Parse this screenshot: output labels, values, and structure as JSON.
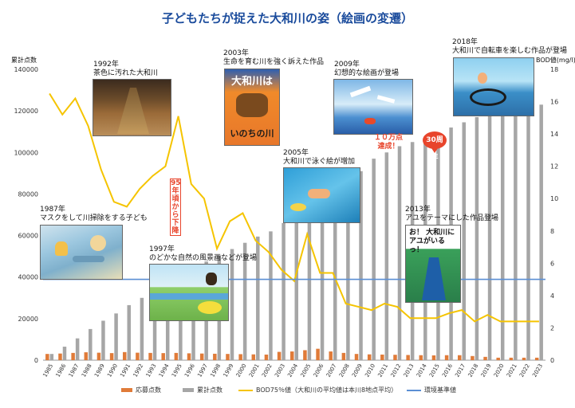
{
  "page": {
    "title": "子どもたちが捉えた大和川の姿（絵画の変遷）"
  },
  "colors": {
    "award_bar": "#e07b39",
    "cumulative_bar": "#a6a6a6",
    "bod_line": "#f5c400",
    "standard_line": "#5b8fd4",
    "title": "#1a4b9c",
    "highlight": "#e8452c"
  },
  "chart_data": {
    "type": "bar",
    "x": [
      "1985",
      "1986",
      "1987",
      "1988",
      "1989",
      "1990",
      "1991",
      "1992",
      "1993",
      "1994",
      "1995",
      "1996",
      "1997",
      "1998",
      "1999",
      "2000",
      "2001",
      "2002",
      "2003",
      "2004",
      "2005",
      "2006",
      "2007",
      "2008",
      "2009",
      "2010",
      "2011",
      "2012",
      "2013",
      "2014",
      "2015",
      "2016",
      "2017",
      "2018",
      "2019",
      "2020",
      "2021",
      "2022",
      "2023"
    ],
    "left_axis": {
      "label": "累計点数",
      "ylim": [
        0,
        140000
      ],
      "ticks": [
        "0",
        "20000",
        "40000",
        "60000",
        "80000",
        "100000",
        "120000",
        "140000"
      ]
    },
    "right_axis": {
      "label": "BOD値(mg/l)",
      "ylim": [
        0,
        18
      ],
      "ticks": [
        "0",
        "2",
        "4",
        "6",
        "8",
        "10",
        "12",
        "14",
        "16",
        "18"
      ]
    },
    "series": [
      {
        "name": "応募点数",
        "type": "bar",
        "axis": "left",
        "values": [
          3000,
          3200,
          3500,
          3800,
          3600,
          3400,
          3900,
          3600,
          3500,
          3400,
          3500,
          3300,
          3200,
          3100,
          3000,
          2900,
          2800,
          2700,
          4000,
          4200,
          4800,
          5500,
          4200,
          3500,
          3000,
          2800,
          2700,
          2600,
          2500,
          2400,
          2300,
          2400,
          2400,
          2000,
          1600,
          1200,
          1200,
          1200,
          1200
        ]
      },
      {
        "name": "累計点数",
        "type": "bar",
        "axis": "left",
        "values": [
          3000,
          6500,
          10500,
          15000,
          19000,
          22500,
          26500,
          30000,
          34000,
          37500,
          41000,
          44500,
          47500,
          50500,
          53500,
          56500,
          59500,
          62000,
          66000,
          70000,
          74500,
          80000,
          84500,
          88000,
          91000,
          97000,
          100000,
          103000,
          105000,
          107000,
          109500,
          112000,
          114500,
          117000,
          118500,
          119500,
          121000,
          122000,
          123000
        ]
      },
      {
        "name": "BOD75％値（大和川の平均値は本川8地点平均）",
        "type": "line",
        "axis": "right",
        "values": [
          16.5,
          15.2,
          16.2,
          14.5,
          11.8,
          9.8,
          9.5,
          10.6,
          11.4,
          12,
          15.1,
          10.9,
          10,
          6.9,
          8.6,
          9.1,
          7.4,
          6.7,
          5.6,
          4.9,
          7.8,
          5.4,
          5.4,
          3.5,
          3.3,
          3.1,
          3.5,
          3.3,
          2.6,
          2.6,
          2.6,
          2.9,
          3.1,
          2.4,
          2.8,
          2.4,
          2.4,
          2.4,
          2.4
        ]
      },
      {
        "name": "環境基準値",
        "type": "line",
        "axis": "right",
        "values": [
          5,
          5,
          5,
          5,
          5,
          5,
          5,
          5,
          5,
          5,
          5,
          5,
          5,
          5,
          5,
          5,
          5,
          5,
          5,
          5,
          5,
          5,
          5,
          5,
          5,
          5,
          5,
          5,
          5,
          5,
          5,
          5,
          5,
          5,
          5,
          5,
          5,
          5,
          5
        ]
      }
    ],
    "legend_position": "bottom",
    "grid": false
  },
  "annotations": {
    "a1987": {
      "year": "1987年",
      "text": "マスクをして川掃除をする子ども"
    },
    "a1992": {
      "year": "1992年",
      "text": "茶色に汚れた大和川"
    },
    "a1997": {
      "year": "1997年",
      "text": "のどかな自然の風景画などが登場"
    },
    "a2003": {
      "year": "2003年",
      "text": "生命を育む川を強く訴えた作品"
    },
    "a2005": {
      "year": "2005年",
      "text": "大和川で泳ぐ絵が増加"
    },
    "a2009": {
      "year": "2009年",
      "text": "幻想的な絵画が登場"
    },
    "a2013": {
      "year": "2013年",
      "text": "アユをテーマにした作品登場"
    },
    "a2018": {
      "year": "2018年",
      "text": "大和川で自転車を楽しむ作品が登場"
    },
    "vertical_note": "95年頃から下降",
    "milestone_1": "１０万点",
    "milestone_2": "達成！",
    "badge_30": "30周年",
    "painting_2003_top": "大和川は",
    "painting_2003_bottom": "いのちの川",
    "painting_2013_text": "お！ 大和川に アユがいるっ！"
  }
}
